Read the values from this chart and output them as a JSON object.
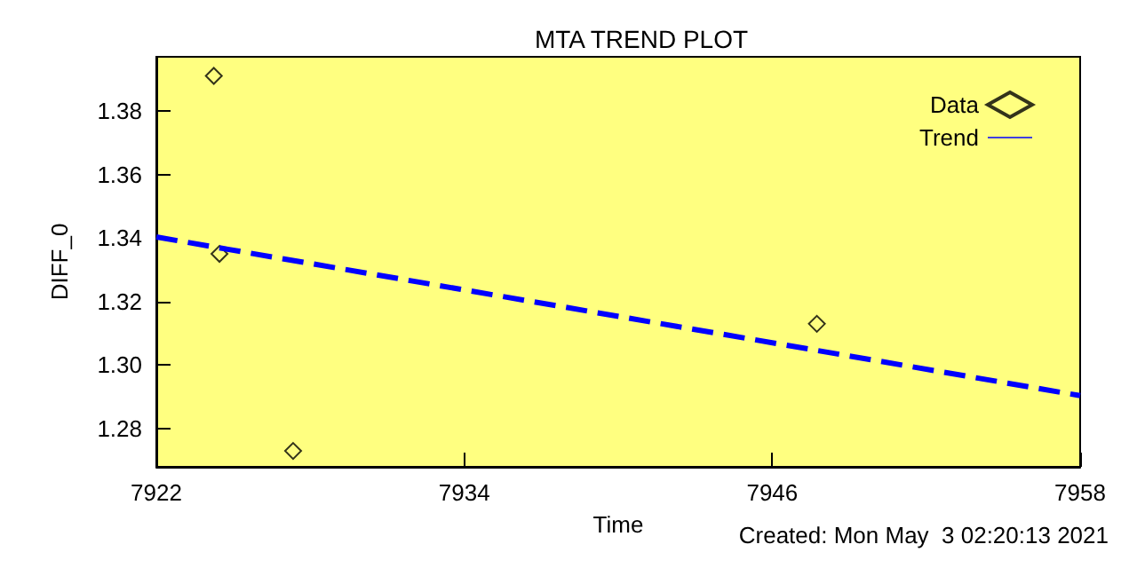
{
  "chart_data": {
    "type": "scatter",
    "title": "MTA TREND PLOT",
    "xlabel": "Time",
    "ylabel": "DIFF_0",
    "xlim": [
      7922,
      7958
    ],
    "xticks": [
      7922,
      7934,
      7946,
      7958
    ],
    "ylim": [
      1.268,
      1.397
    ],
    "yticks": [
      1.28,
      {
        "value": 1.3,
        "label": "1.30"
      },
      1.32,
      1.34,
      1.36,
      1.38
    ],
    "grid": false,
    "legend": "top right",
    "series": [
      {
        "name": "Data",
        "marker": "diamond",
        "color": "#000000",
        "x": [
          7924.24,
          7924.46,
          7927.33,
          7947.74
        ],
        "values": [
          1.391,
          1.335,
          1.273,
          1.313
        ]
      },
      {
        "name": "Trend",
        "type": "line",
        "marker": "none",
        "line_style": "dashed",
        "color": "#0000ff",
        "x": [
          7922,
          7958
        ],
        "values": [
          1.3403,
          1.2904
        ]
      }
    ],
    "annotations": [
      "Created: Mon May  3 02:20:13 2021"
    ]
  }
}
